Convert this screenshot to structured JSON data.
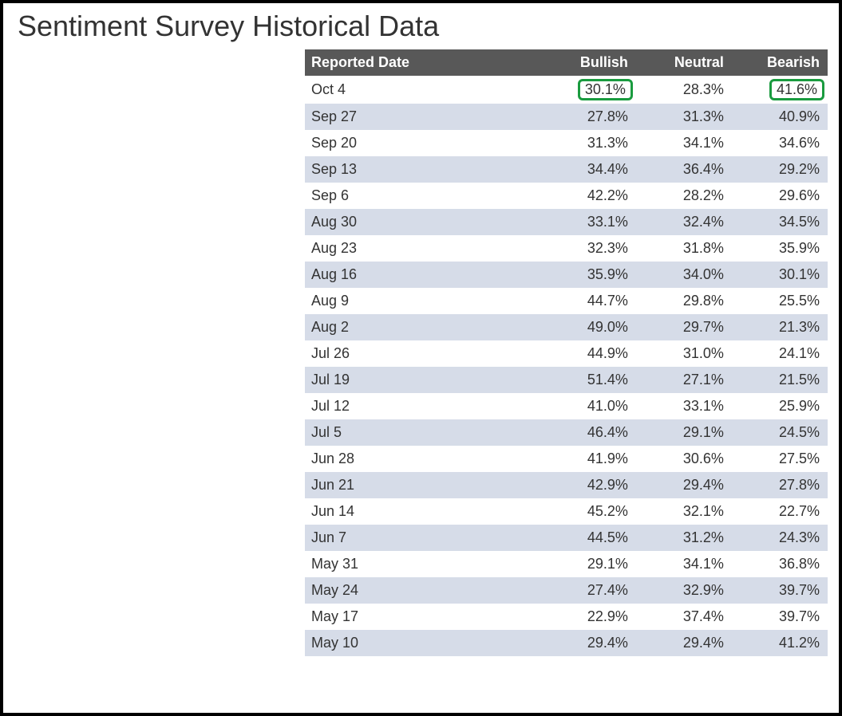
{
  "title": "Sentiment Survey Historical Data",
  "colors": {
    "header_bg": "#585858",
    "header_text": "#ffffff",
    "row_odd_bg": "#ffffff",
    "row_even_bg": "#d6dce8",
    "text_color": "#333333",
    "highlight_border": "#1a9b3f",
    "frame_border": "#000000"
  },
  "table": {
    "columns": [
      "Reported Date",
      "Bullish",
      "Neutral",
      "Bearish"
    ],
    "column_align": [
      "left",
      "right",
      "right",
      "right"
    ],
    "rows": [
      {
        "date": "Oct 4",
        "bullish": "30.1%",
        "neutral": "28.3%",
        "bearish": "41.6%",
        "highlight": [
          "bullish",
          "bearish"
        ]
      },
      {
        "date": "Sep 27",
        "bullish": "27.8%",
        "neutral": "31.3%",
        "bearish": "40.9%",
        "highlight": []
      },
      {
        "date": "Sep 20",
        "bullish": "31.3%",
        "neutral": "34.1%",
        "bearish": "34.6%",
        "highlight": []
      },
      {
        "date": "Sep 13",
        "bullish": "34.4%",
        "neutral": "36.4%",
        "bearish": "29.2%",
        "highlight": []
      },
      {
        "date": "Sep 6",
        "bullish": "42.2%",
        "neutral": "28.2%",
        "bearish": "29.6%",
        "highlight": []
      },
      {
        "date": "Aug 30",
        "bullish": "33.1%",
        "neutral": "32.4%",
        "bearish": "34.5%",
        "highlight": []
      },
      {
        "date": "Aug 23",
        "bullish": "32.3%",
        "neutral": "31.8%",
        "bearish": "35.9%",
        "highlight": []
      },
      {
        "date": "Aug 16",
        "bullish": "35.9%",
        "neutral": "34.0%",
        "bearish": "30.1%",
        "highlight": []
      },
      {
        "date": "Aug 9",
        "bullish": "44.7%",
        "neutral": "29.8%",
        "bearish": "25.5%",
        "highlight": []
      },
      {
        "date": "Aug 2",
        "bullish": "49.0%",
        "neutral": "29.7%",
        "bearish": "21.3%",
        "highlight": []
      },
      {
        "date": "Jul 26",
        "bullish": "44.9%",
        "neutral": "31.0%",
        "bearish": "24.1%",
        "highlight": []
      },
      {
        "date": "Jul 19",
        "bullish": "51.4%",
        "neutral": "27.1%",
        "bearish": "21.5%",
        "highlight": []
      },
      {
        "date": "Jul 12",
        "bullish": "41.0%",
        "neutral": "33.1%",
        "bearish": "25.9%",
        "highlight": []
      },
      {
        "date": "Jul 5",
        "bullish": "46.4%",
        "neutral": "29.1%",
        "bearish": "24.5%",
        "highlight": []
      },
      {
        "date": "Jun 28",
        "bullish": "41.9%",
        "neutral": "30.6%",
        "bearish": "27.5%",
        "highlight": []
      },
      {
        "date": "Jun 21",
        "bullish": "42.9%",
        "neutral": "29.4%",
        "bearish": "27.8%",
        "highlight": []
      },
      {
        "date": "Jun 14",
        "bullish": "45.2%",
        "neutral": "32.1%",
        "bearish": "22.7%",
        "highlight": []
      },
      {
        "date": "Jun 7",
        "bullish": "44.5%",
        "neutral": "31.2%",
        "bearish": "24.3%",
        "highlight": []
      },
      {
        "date": "May 31",
        "bullish": "29.1%",
        "neutral": "34.1%",
        "bearish": "36.8%",
        "highlight": []
      },
      {
        "date": "May 24",
        "bullish": "27.4%",
        "neutral": "32.9%",
        "bearish": "39.7%",
        "highlight": []
      },
      {
        "date": "May 17",
        "bullish": "22.9%",
        "neutral": "37.4%",
        "bearish": "39.7%",
        "highlight": []
      },
      {
        "date": "May 10",
        "bullish": "29.4%",
        "neutral": "29.4%",
        "bearish": "41.2%",
        "highlight": []
      }
    ]
  }
}
